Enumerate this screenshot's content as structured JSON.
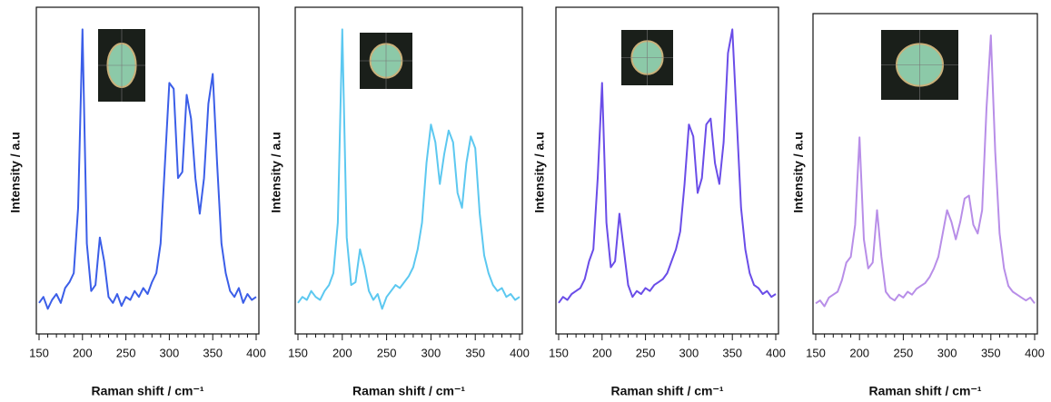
{
  "chart_data": [
    {
      "type": "line",
      "xlabel": "Raman shift / cm⁻¹",
      "ylabel": "Intensity / a.u",
      "color": "#3b5ee8",
      "x": [
        150,
        155,
        160,
        165,
        170,
        175,
        180,
        185,
        190,
        195,
        200,
        205,
        210,
        215,
        220,
        225,
        230,
        235,
        240,
        245,
        250,
        255,
        260,
        265,
        270,
        275,
        280,
        285,
        290,
        295,
        300,
        305,
        310,
        315,
        320,
        325,
        330,
        335,
        340,
        345,
        350,
        355,
        360,
        365,
        370,
        375,
        380,
        385,
        390,
        395,
        400
      ],
      "values": [
        8,
        10,
        6,
        9,
        11,
        8,
        13,
        15,
        18,
        40,
        100,
        28,
        12,
        14,
        30,
        22,
        10,
        8,
        11,
        7,
        10,
        9,
        12,
        10,
        13,
        11,
        15,
        18,
        28,
        55,
        82,
        80,
        50,
        52,
        78,
        70,
        50,
        38,
        50,
        75,
        85,
        55,
        28,
        18,
        12,
        10,
        13,
        8,
        11,
        9,
        10
      ],
      "xlim": [
        150,
        400
      ],
      "xticks": [
        150,
        200,
        250,
        300,
        350,
        400
      ],
      "ylim": [
        0,
        105
      ]
    },
    {
      "type": "line",
      "xlabel": "Raman shift / cm⁻¹",
      "ylabel": "Intensity / a.u",
      "color": "#5cc8f0",
      "x": [
        150,
        155,
        160,
        165,
        170,
        175,
        180,
        185,
        190,
        195,
        200,
        205,
        210,
        215,
        220,
        225,
        230,
        235,
        240,
        245,
        250,
        255,
        260,
        265,
        270,
        275,
        280,
        285,
        290,
        295,
        300,
        305,
        310,
        315,
        320,
        325,
        330,
        335,
        340,
        345,
        350,
        355,
        360,
        365,
        370,
        375,
        380,
        385,
        390,
        395,
        400
      ],
      "values": [
        8,
        10,
        9,
        12,
        10,
        9,
        12,
        14,
        18,
        35,
        100,
        30,
        14,
        15,
        26,
        20,
        12,
        9,
        11,
        6,
        10,
        12,
        14,
        13,
        15,
        17,
        20,
        26,
        35,
        55,
        68,
        62,
        48,
        58,
        66,
        62,
        45,
        40,
        55,
        64,
        60,
        38,
        24,
        18,
        14,
        12,
        13,
        10,
        11,
        9,
        10
      ],
      "xlim": [
        150,
        400
      ],
      "xticks": [
        150,
        200,
        250,
        300,
        350,
        400
      ],
      "ylim": [
        0,
        105
      ]
    },
    {
      "type": "line",
      "xlabel": "Raman shift / cm⁻¹",
      "ylabel": "Intensity / a.u",
      "color": "#6a4de8",
      "x": [
        150,
        155,
        160,
        165,
        170,
        175,
        180,
        185,
        190,
        195,
        200,
        205,
        210,
        215,
        220,
        225,
        230,
        235,
        240,
        245,
        250,
        255,
        260,
        265,
        270,
        275,
        280,
        285,
        290,
        295,
        300,
        305,
        310,
        315,
        320,
        325,
        330,
        335,
        340,
        345,
        350,
        355,
        360,
        365,
        370,
        375,
        380,
        385,
        390,
        395,
        400
      ],
      "values": [
        8,
        10,
        9,
        11,
        12,
        13,
        16,
        22,
        26,
        50,
        82,
        35,
        20,
        22,
        38,
        26,
        14,
        10,
        12,
        11,
        13,
        12,
        14,
        15,
        16,
        18,
        22,
        26,
        32,
        48,
        68,
        64,
        45,
        50,
        68,
        70,
        55,
        48,
        62,
        92,
        100,
        70,
        40,
        26,
        18,
        14,
        13,
        11,
        12,
        10,
        11
      ],
      "xlim": [
        150,
        400
      ],
      "xticks": [
        150,
        200,
        250,
        300,
        350,
        400
      ],
      "ylim": [
        0,
        105
      ]
    },
    {
      "type": "line",
      "xlabel": "Raman shift / cm⁻¹",
      "ylabel": "Intensity / a.u",
      "color": "#b88ee8",
      "x": [
        150,
        155,
        160,
        165,
        170,
        175,
        180,
        185,
        190,
        195,
        200,
        205,
        210,
        215,
        220,
        225,
        230,
        235,
        240,
        245,
        250,
        255,
        260,
        265,
        270,
        275,
        280,
        285,
        290,
        295,
        300,
        305,
        310,
        315,
        320,
        325,
        330,
        335,
        340,
        345,
        350,
        355,
        360,
        365,
        370,
        375,
        380,
        385,
        390,
        395,
        400
      ],
      "values": [
        8,
        9,
        7,
        10,
        11,
        12,
        16,
        22,
        24,
        35,
        65,
        30,
        20,
        22,
        40,
        24,
        12,
        10,
        9,
        11,
        10,
        12,
        11,
        13,
        14,
        15,
        17,
        20,
        24,
        32,
        40,
        36,
        30,
        36,
        44,
        45,
        35,
        32,
        40,
        75,
        100,
        60,
        32,
        20,
        14,
        12,
        11,
        10,
        9,
        10,
        8
      ],
      "xlim": [
        150,
        400
      ],
      "xticks": [
        150,
        200,
        250,
        300,
        350,
        400
      ],
      "ylim": [
        0,
        105
      ]
    }
  ]
}
